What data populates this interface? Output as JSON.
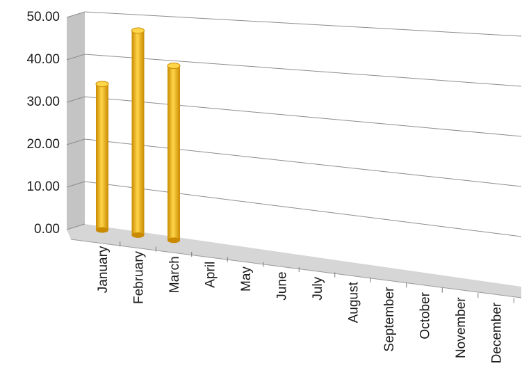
{
  "chart_data": {
    "type": "bar",
    "style": "3d-cylinder",
    "categories": [
      "January",
      "February",
      "March",
      "April",
      "May",
      "June",
      "July",
      "August",
      "September",
      "October",
      "November",
      "December"
    ],
    "series": [
      {
        "values": [
          34.0,
          47.0,
          39.5,
          null,
          null,
          null,
          null,
          null,
          null,
          null,
          null,
          null
        ]
      }
    ],
    "y_ticks": [
      "0.00",
      "10.00",
      "20.00",
      "30.00",
      "40.00",
      "50.00"
    ],
    "ylim": [
      0,
      50
    ],
    "title": "",
    "xlabel": "",
    "ylabel": "",
    "grid": true,
    "legend": "none",
    "colors": {
      "bar": "#f2b600",
      "bar_dark": "#c98a00",
      "bar_light": "#ffd54a",
      "wall": "#c4c4c4",
      "floor": "#d6d6d6",
      "grid": "#8c8c8c"
    }
  }
}
